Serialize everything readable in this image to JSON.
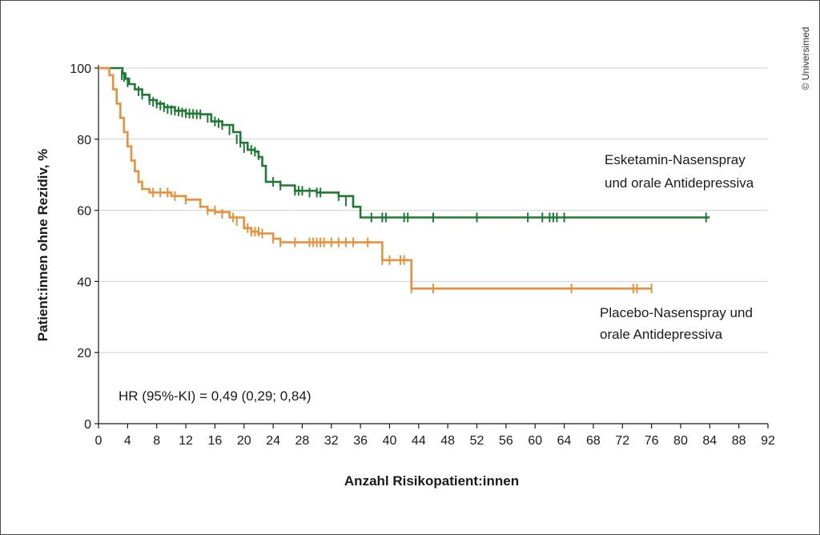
{
  "copyright": "© Universimed",
  "chart_data": {
    "type": "line",
    "xlabel": "Anzahl Risikopatient:innen",
    "ylabel": "Patient:innen ohne Rezidiv, %",
    "xlim": [
      0,
      92
    ],
    "ylim": [
      0,
      100
    ],
    "xticks": [
      0,
      4,
      8,
      12,
      16,
      20,
      24,
      28,
      32,
      36,
      40,
      44,
      48,
      52,
      56,
      60,
      64,
      68,
      72,
      76,
      80,
      84,
      88,
      92
    ],
    "yticks": [
      0,
      20,
      40,
      60,
      80,
      100
    ],
    "grid": "horizontal",
    "annotation": "HR (95%-KI) = 0,49 (0,29; 0,84)",
    "series": [
      {
        "name_lines": [
          "Esketamin-Nasenspray",
          "und orale Antidepressiva"
        ],
        "color": "#1e7a32",
        "steps": [
          [
            0,
            100
          ],
          [
            3,
            100
          ],
          [
            3.3,
            98.5
          ],
          [
            3.7,
            97
          ],
          [
            4.2,
            95.5
          ],
          [
            5,
            94
          ],
          [
            6,
            92.5
          ],
          [
            7,
            91
          ],
          [
            8,
            90
          ],
          [
            9,
            89
          ],
          [
            10.5,
            88
          ],
          [
            12,
            87.2
          ],
          [
            14,
            87
          ],
          [
            15.5,
            85
          ],
          [
            17,
            84
          ],
          [
            18.5,
            82
          ],
          [
            19.5,
            79
          ],
          [
            20.5,
            77
          ],
          [
            21.5,
            76.5
          ],
          [
            22,
            75
          ],
          [
            22.5,
            72.5
          ],
          [
            23,
            68
          ],
          [
            25,
            67
          ],
          [
            27,
            65.5
          ],
          [
            30,
            65
          ],
          [
            33,
            64
          ],
          [
            35,
            61
          ],
          [
            36,
            58
          ],
          [
            38,
            58
          ],
          [
            40,
            58
          ],
          [
            42,
            58
          ],
          [
            48,
            58
          ],
          [
            84,
            58
          ]
        ],
        "censors": [
          [
            3.2,
            98
          ],
          [
            3.5,
            97.5
          ],
          [
            4,
            96
          ],
          [
            5.5,
            93.5
          ],
          [
            6,
            92.5
          ],
          [
            7,
            91
          ],
          [
            7.5,
            90.5
          ],
          [
            8,
            90
          ],
          [
            8.5,
            89.5
          ],
          [
            9,
            89
          ],
          [
            9.5,
            88.5
          ],
          [
            10,
            88.2
          ],
          [
            10.5,
            88
          ],
          [
            11,
            87.8
          ],
          [
            11.5,
            87.5
          ],
          [
            12,
            87.3
          ],
          [
            12.5,
            87.2
          ],
          [
            13,
            87.1
          ],
          [
            13.5,
            87
          ],
          [
            14,
            87
          ],
          [
            15,
            86
          ],
          [
            16,
            85
          ],
          [
            16.5,
            84.5
          ],
          [
            17,
            84
          ],
          [
            18,
            82.5
          ],
          [
            19,
            80
          ],
          [
            19.5,
            79
          ],
          [
            20,
            77.5
          ],
          [
            21,
            77
          ],
          [
            21.5,
            76.5
          ],
          [
            22,
            75.5
          ],
          [
            24,
            68
          ],
          [
            25,
            67
          ],
          [
            27,
            65.5
          ],
          [
            27.5,
            65.5
          ],
          [
            28,
            65.5
          ],
          [
            29,
            65
          ],
          [
            30,
            65
          ],
          [
            30.5,
            65
          ],
          [
            33,
            64
          ],
          [
            34,
            62.5
          ],
          [
            37.5,
            58
          ],
          [
            39,
            58
          ],
          [
            39.5,
            58
          ],
          [
            42,
            58
          ],
          [
            42.5,
            58
          ],
          [
            46,
            58
          ],
          [
            52,
            58
          ],
          [
            59,
            58
          ],
          [
            61,
            58
          ],
          [
            62,
            58
          ],
          [
            62.5,
            58
          ],
          [
            63,
            58
          ],
          [
            64,
            58
          ],
          [
            83.5,
            58
          ]
        ]
      },
      {
        "name_lines": [
          "Placebo-Nasenspray und",
          "orale Antidepressiva"
        ],
        "color": "#e8913a",
        "steps": [
          [
            0,
            100
          ],
          [
            1.2,
            100
          ],
          [
            1.5,
            98
          ],
          [
            2,
            94
          ],
          [
            2.5,
            90
          ],
          [
            3,
            86
          ],
          [
            3.5,
            82
          ],
          [
            4,
            78
          ],
          [
            4.5,
            74
          ],
          [
            5,
            71
          ],
          [
            5.5,
            68
          ],
          [
            6,
            66
          ],
          [
            7,
            65
          ],
          [
            10,
            64
          ],
          [
            12,
            63
          ],
          [
            14,
            61
          ],
          [
            15,
            60
          ],
          [
            16,
            59.5
          ],
          [
            18,
            58
          ],
          [
            20,
            55
          ],
          [
            21,
            54
          ],
          [
            22,
            53.5
          ],
          [
            24,
            52
          ],
          [
            25,
            51
          ],
          [
            30,
            51
          ],
          [
            36,
            51
          ],
          [
            38,
            51
          ],
          [
            39,
            46
          ],
          [
            41,
            46
          ],
          [
            42,
            46
          ],
          [
            43,
            38
          ],
          [
            44,
            38
          ],
          [
            76,
            38
          ]
        ],
        "censors": [
          [
            5.5,
            69
          ],
          [
            6,
            67
          ],
          [
            7.5,
            65
          ],
          [
            8.5,
            65
          ],
          [
            9.5,
            65
          ],
          [
            10.5,
            64
          ],
          [
            12,
            63
          ],
          [
            14,
            62
          ],
          [
            15,
            60
          ],
          [
            16,
            60
          ],
          [
            17,
            59
          ],
          [
            18.5,
            58
          ],
          [
            19,
            57
          ],
          [
            20,
            56
          ],
          [
            20.5,
            55
          ],
          [
            21,
            54
          ],
          [
            21.5,
            54
          ],
          [
            22,
            54
          ],
          [
            22.5,
            53.5
          ],
          [
            24,
            52
          ],
          [
            25,
            51
          ],
          [
            27,
            51
          ],
          [
            29,
            51
          ],
          [
            29.5,
            51
          ],
          [
            30,
            51
          ],
          [
            30.5,
            51
          ],
          [
            31,
            51
          ],
          [
            32,
            51
          ],
          [
            33,
            51
          ],
          [
            34,
            51
          ],
          [
            35,
            51
          ],
          [
            37,
            51
          ],
          [
            39,
            46
          ],
          [
            40,
            46
          ],
          [
            41.5,
            46
          ],
          [
            42,
            46
          ],
          [
            43,
            38
          ],
          [
            46,
            38
          ],
          [
            65,
            38
          ],
          [
            73.5,
            38
          ],
          [
            74,
            38
          ],
          [
            76,
            38
          ]
        ]
      }
    ]
  }
}
